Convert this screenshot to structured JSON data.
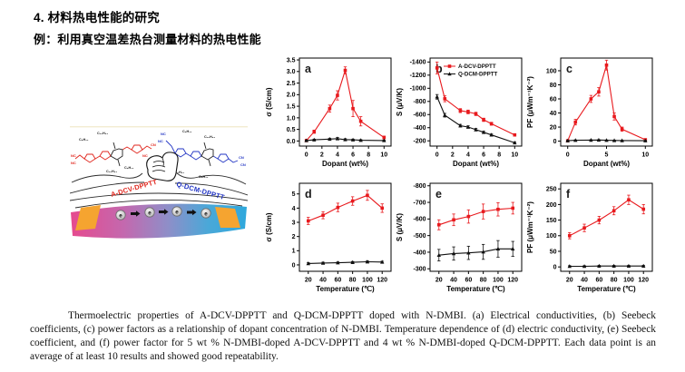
{
  "page": {
    "heading": "4. 材料热电性能的研究",
    "subheading": "例：利用真空温差热台测量材料的热电性能",
    "caption": "Thermoelectric properties of A-DCV-DPPTT and Q-DCM-DPPTT doped with N-DMBI. (a) Electrical conductivities, (b) Seebeck coefficients, (c) power factors as a relationship of dopant concentration of N-DMBI. Temperature dependence of (d) electric conductivity, (e) Seebeck coefficient, and (f) power factor for 5 wt % N-DMBI-doped A-DCV-DPPTT and 4 wt % N-DMBI-doped Q-DCM-DPPTT. Each data point is an average of at least 10 results and showed good repeatability."
  },
  "illustration": {
    "left_polymer": {
      "label": "A-DCV-DPPTT",
      "color": "#e0251c",
      "nitrile_labels": [
        "NC",
        "NC",
        "CN",
        "NC"
      ],
      "alkyl_top": [
        "C₈H₁₇",
        "C₁₀H₂₁"
      ],
      "alkyl_bottom": [
        "C₁₀H₂₁",
        "C₈H₁₇"
      ]
    },
    "right_polymer": {
      "label": "Q-DCM-DPPTT",
      "color": "#2336c4",
      "nitrile_labels": [
        "NC",
        "NC",
        "CN",
        "CN"
      ],
      "alkyl_top": [
        "C₈H₁₇",
        "C₁₀H₂₁"
      ],
      "alkyl_bottom": [
        "C₁₀H₂₁",
        "C₈H₁₇"
      ]
    },
    "electron_symbol": "e",
    "electron_count": 4,
    "substrate_colors": [
      "#e64a8e",
      "#2fa8dc"
    ],
    "electrode_color": "#f5a430"
  },
  "chart_data": [
    {
      "type": "line",
      "letter": "a",
      "xlabel": "Dopant (wt%)",
      "ylabel": "σ (S/cm)",
      "x_range": [
        -0.9,
        10.9
      ],
      "y_range": [
        3.58,
        -0.22
      ],
      "xticks": [
        0,
        2,
        4,
        6,
        8,
        10
      ],
      "xtick_labels": [
        "0",
        "2",
        "4",
        "6",
        "8",
        "10"
      ],
      "yticks": [
        0,
        0.5,
        1,
        1.5,
        2,
        2.5,
        3,
        3.5
      ],
      "ytick_labels": [
        "0.0",
        "0.5",
        "1.0",
        "1.5",
        "2.0",
        "2.5",
        "3.0",
        "3.5"
      ],
      "legend": false,
      "series": [
        {
          "name": "A-DCV-DPPTT",
          "color": "#e8191d",
          "marker": "square",
          "x": [
            0,
            1,
            3,
            4,
            5,
            6,
            7,
            10
          ],
          "y": [
            0.02,
            0.4,
            1.4,
            1.97,
            3.05,
            1.4,
            0.85,
            0.15
          ],
          "yerr": [
            0.03,
            0.07,
            0.15,
            0.2,
            0.15,
            0.35,
            0.2,
            0.06
          ]
        },
        {
          "name": "Q-DCM-DPPTT",
          "color": "#111111",
          "marker": "triangle",
          "x": [
            0,
            1,
            3,
            4,
            5,
            6,
            7,
            10
          ],
          "y": [
            0.02,
            0.05,
            0.08,
            0.1,
            0.06,
            0.05,
            0.03,
            0.02
          ],
          "yerr": [
            0.02,
            0.03,
            0.04,
            0.05,
            0.04,
            0.03,
            0.03,
            0.02
          ]
        }
      ]
    },
    {
      "type": "line",
      "letter": "b",
      "xlabel": "Dopant (wt%)",
      "ylabel": "S (μV/K)",
      "x_range": [
        -0.9,
        10.9
      ],
      "y_range": [
        -1460,
        -120
      ],
      "xticks": [
        0,
        2,
        4,
        6,
        8,
        10
      ],
      "xtick_labels": [
        "0",
        "2",
        "4",
        "6",
        "8",
        "10"
      ],
      "yticks": [
        -1400,
        -1200,
        -1000,
        -800,
        -600,
        -400,
        -200
      ],
      "ytick_labels": [
        "-1400",
        "-1200",
        "-1000",
        "-800",
        "-600",
        "-400",
        "-200"
      ],
      "legend": true,
      "series": [
        {
          "name": "A-DCV-DPPTT",
          "color": "#e8191d",
          "marker": "square",
          "x": [
            0,
            1,
            3,
            4,
            5,
            6,
            7,
            10
          ],
          "y": [
            -1310,
            -840,
            -660,
            -640,
            -610,
            -520,
            -460,
            -290
          ],
          "yerr": [
            90,
            45,
            30,
            28,
            25,
            25,
            22,
            18
          ]
        },
        {
          "name": "Q-DCM-DPPTT",
          "color": "#111111",
          "marker": "triangle",
          "x": [
            0,
            1,
            3,
            4,
            5,
            6,
            7,
            10
          ],
          "y": [
            -870,
            -590,
            -430,
            -410,
            -370,
            -330,
            -290,
            -170
          ],
          "yerr": [
            35,
            28,
            20,
            18,
            18,
            15,
            14,
            12
          ]
        }
      ]
    },
    {
      "type": "line",
      "letter": "c",
      "xlabel": "Dopant (wt%)",
      "ylabel": "PF (μWm⁻¹K⁻²)",
      "x_range": [
        -0.9,
        10.9
      ],
      "y_range": [
        118,
        -7
      ],
      "xticks": [
        0,
        5,
        10
      ],
      "xtick_labels": [
        "0",
        "5",
        "10"
      ],
      "yticks": [
        0,
        20,
        40,
        60,
        80,
        100
      ],
      "ytick_labels": [
        "0",
        "20",
        "40",
        "60",
        "80",
        "100"
      ],
      "legend": false,
      "series": [
        {
          "name": "A-DCV-DPPTT",
          "color": "#e8191d",
          "marker": "square",
          "x": [
            0,
            1,
            3,
            4,
            5,
            6,
            7,
            10
          ],
          "y": [
            0.5,
            27,
            60,
            70,
            108,
            35,
            17,
            2
          ],
          "yerr": [
            0.8,
            4,
            5,
            6,
            7,
            5,
            3,
            1.2
          ]
        },
        {
          "name": "Q-DCM-DPPTT",
          "color": "#111111",
          "marker": "triangle",
          "x": [
            0,
            1,
            3,
            4,
            5,
            6,
            7,
            10
          ],
          "y": [
            0.6,
            1.2,
            1.5,
            1.6,
            1.2,
            1,
            0.8,
            0.6
          ],
          "yerr": [
            0.5,
            0.6,
            0.6,
            0.6,
            0.5,
            0.5,
            0.5,
            0.5
          ]
        }
      ]
    },
    {
      "type": "line",
      "letter": "d",
      "xlabel": "Temperature (℃)",
      "ylabel": "σ (S/cm)",
      "x_range": [
        8,
        132
      ],
      "y_range": [
        5.75,
        -0.45
      ],
      "xticks": [
        20,
        40,
        60,
        80,
        100,
        120
      ],
      "xtick_labels": [
        "20",
        "40",
        "60",
        "80",
        "100",
        "120"
      ],
      "yticks": [
        0,
        1,
        2,
        3,
        4,
        5
      ],
      "ytick_labels": [
        "0",
        "1",
        "2",
        "3",
        "4",
        "5"
      ],
      "legend": false,
      "series": [
        {
          "name": "A-DCV-DPPTT",
          "color": "#e8191d",
          "marker": "square",
          "x": [
            20,
            40,
            60,
            80,
            100,
            120
          ],
          "y": [
            3.1,
            3.5,
            4.05,
            4.5,
            4.9,
            4.0
          ],
          "yerr": [
            0.25,
            0.25,
            0.3,
            0.3,
            0.35,
            0.3
          ]
        },
        {
          "name": "Q-DCM-DPPTT",
          "color": "#111111",
          "marker": "triangle",
          "x": [
            20,
            40,
            60,
            80,
            100,
            120
          ],
          "y": [
            0.1,
            0.13,
            0.15,
            0.18,
            0.22,
            0.2
          ],
          "yerr": [
            0.06,
            0.06,
            0.06,
            0.06,
            0.07,
            0.06
          ]
        }
      ]
    },
    {
      "type": "line",
      "letter": "e",
      "xlabel": "Temperature (℃)",
      "ylabel": "S (μV/K)",
      "x_range": [
        8,
        132
      ],
      "y_range": [
        -815,
        -285
      ],
      "xticks": [
        20,
        40,
        60,
        80,
        100,
        120
      ],
      "xtick_labels": [
        "20",
        "40",
        "60",
        "80",
        "100",
        "120"
      ],
      "yticks": [
        -800,
        -700,
        -600,
        -500,
        -400,
        -300
      ],
      "ytick_labels": [
        "-800",
        "-700",
        "-600",
        "-500",
        "-400",
        "-300"
      ],
      "legend": false,
      "series": [
        {
          "name": "A-DCV-DPPTT",
          "color": "#e8191d",
          "marker": "square",
          "x": [
            20,
            40,
            60,
            80,
            100,
            120
          ],
          "y": [
            -565,
            -595,
            -615,
            -645,
            -658,
            -665
          ],
          "yerr": [
            30,
            35,
            40,
            45,
            40,
            35
          ]
        },
        {
          "name": "Q-DCM-DPPTT",
          "color": "#111111",
          "marker": "triangle",
          "x": [
            20,
            40,
            60,
            80,
            100,
            120
          ],
          "y": [
            -382,
            -392,
            -396,
            -402,
            -420,
            -420
          ],
          "yerr": [
            35,
            40,
            40,
            45,
            50,
            45
          ]
        }
      ]
    },
    {
      "type": "line",
      "letter": "f",
      "xlabel": "Temperature (℃)",
      "ylabel": "PF (μWm⁻¹K⁻²)",
      "x_range": [
        8,
        132
      ],
      "y_range": [
        268,
        -14
      ],
      "xticks": [
        20,
        40,
        60,
        80,
        100,
        120
      ],
      "xtick_labels": [
        "20",
        "40",
        "60",
        "80",
        "100",
        "120"
      ],
      "yticks": [
        0,
        50,
        100,
        150,
        200,
        250
      ],
      "ytick_labels": [
        "0",
        "50",
        "100",
        "150",
        "200",
        "250"
      ],
      "legend": false,
      "series": [
        {
          "name": "A-DCV-DPPTT",
          "color": "#e8191d",
          "marker": "square",
          "x": [
            20,
            40,
            60,
            80,
            100,
            120
          ],
          "y": [
            100,
            125,
            150,
            180,
            215,
            185
          ],
          "yerr": [
            10,
            12,
            12,
            13,
            15,
            15
          ]
        },
        {
          "name": "Q-DCM-DPPTT",
          "color": "#111111",
          "marker": "triangle",
          "x": [
            20,
            40,
            60,
            80,
            100,
            120
          ],
          "y": [
            2,
            2,
            3,
            3,
            3,
            3
          ],
          "yerr": [
            2,
            2,
            2,
            2,
            2,
            2
          ]
        }
      ]
    }
  ]
}
